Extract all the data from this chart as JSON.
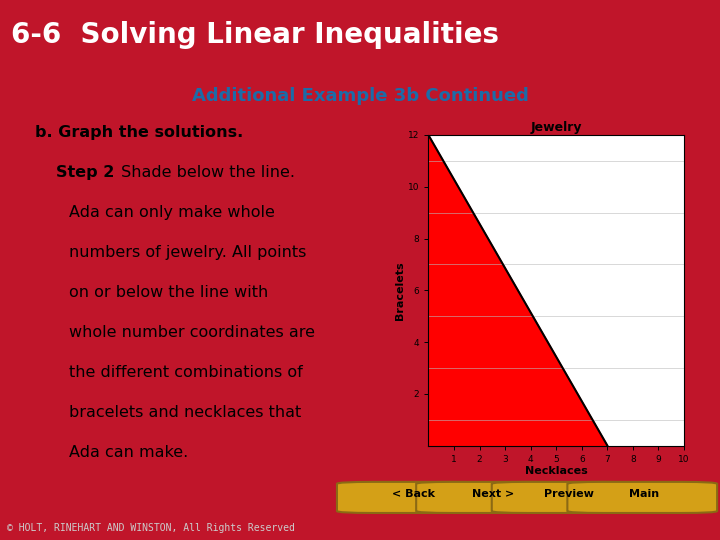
{
  "title": "6-6  Solving Linear Inequalities",
  "subtitle": "Additional Example 3b Continued",
  "header_bg": "#5C0A0A",
  "header_text_color": "#FFFFFF",
  "subtitle_color": "#1B6CA8",
  "content_bg": "#FFFFFF",
  "outer_bg": "#C0152A",
  "footer_nav_bg": "#C0152A",
  "footer_copy_bg": "#111111",
  "body_text_lines": [
    {
      "text": "b. Graph the solutions.",
      "bold": true,
      "indent": false
    },
    {
      "text": "Step 2",
      "rest": " Shade below the line.",
      "bold": true,
      "indent": true
    },
    {
      "text": "Ada can only make whole",
      "bold": false,
      "indent": true
    },
    {
      "text": "numbers of jewelry. All points",
      "bold": false,
      "indent": true
    },
    {
      "text": "on or below the line with",
      "bold": false,
      "indent": true
    },
    {
      "text": "whole number coordinates are",
      "bold": false,
      "indent": true
    },
    {
      "text": "the different combinations of",
      "bold": false,
      "indent": true
    },
    {
      "text": "bracelets and necklaces that",
      "bold": false,
      "indent": true
    },
    {
      "text": "Ada can make.",
      "bold": false,
      "indent": true
    }
  ],
  "graph_title": "Jewelry",
  "xlabel": "Necklaces",
  "ylabel": "Bracelets",
  "xlim": [
    0,
    10
  ],
  "ylim": [
    0,
    12
  ],
  "line_x": [
    0,
    7
  ],
  "line_y": [
    12,
    0
  ],
  "shade_color": "#FF0000",
  "line_color": "#000000",
  "nav_buttons": [
    "< Back",
    "Next >",
    "Preview",
    "Main"
  ],
  "copyright": "© HOLT, RINEHART AND WINSTON, All Rights Reserved",
  "button_color": "#D4A017",
  "button_edge": "#8B6914"
}
